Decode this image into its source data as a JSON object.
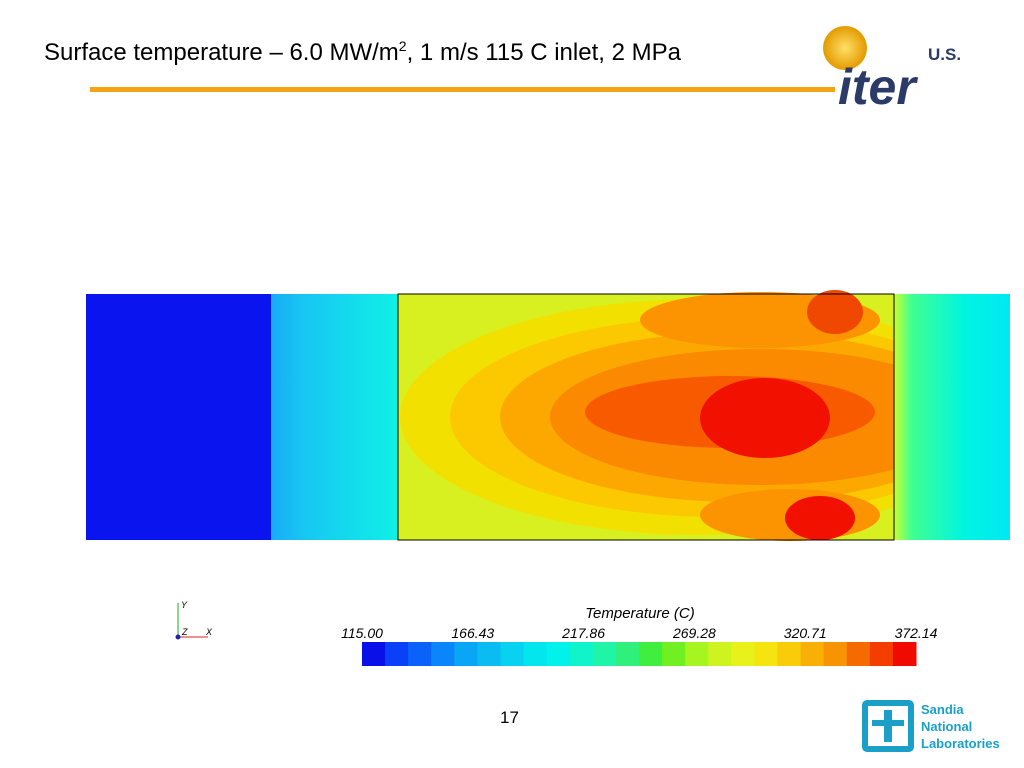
{
  "header": {
    "title_parts": [
      "Surface temperature – 6.0 MW/m",
      "2",
      ", 1 m/s 115 C inlet, 2 MPa"
    ]
  },
  "logo_iter": {
    "country": "U.S.",
    "name": "iter"
  },
  "figure": {
    "triad": {
      "y": "Y",
      "z": "Z",
      "x": "X"
    },
    "colorbar": {
      "title": "Temperature (C)",
      "labels": [
        "115.00",
        "166.43",
        "217.86",
        "269.28",
        "320.71",
        "372.14"
      ]
    }
  },
  "footer": {
    "page": "17",
    "logo_sandia": [
      "Sandia",
      "National",
      "Laboratories"
    ]
  }
}
